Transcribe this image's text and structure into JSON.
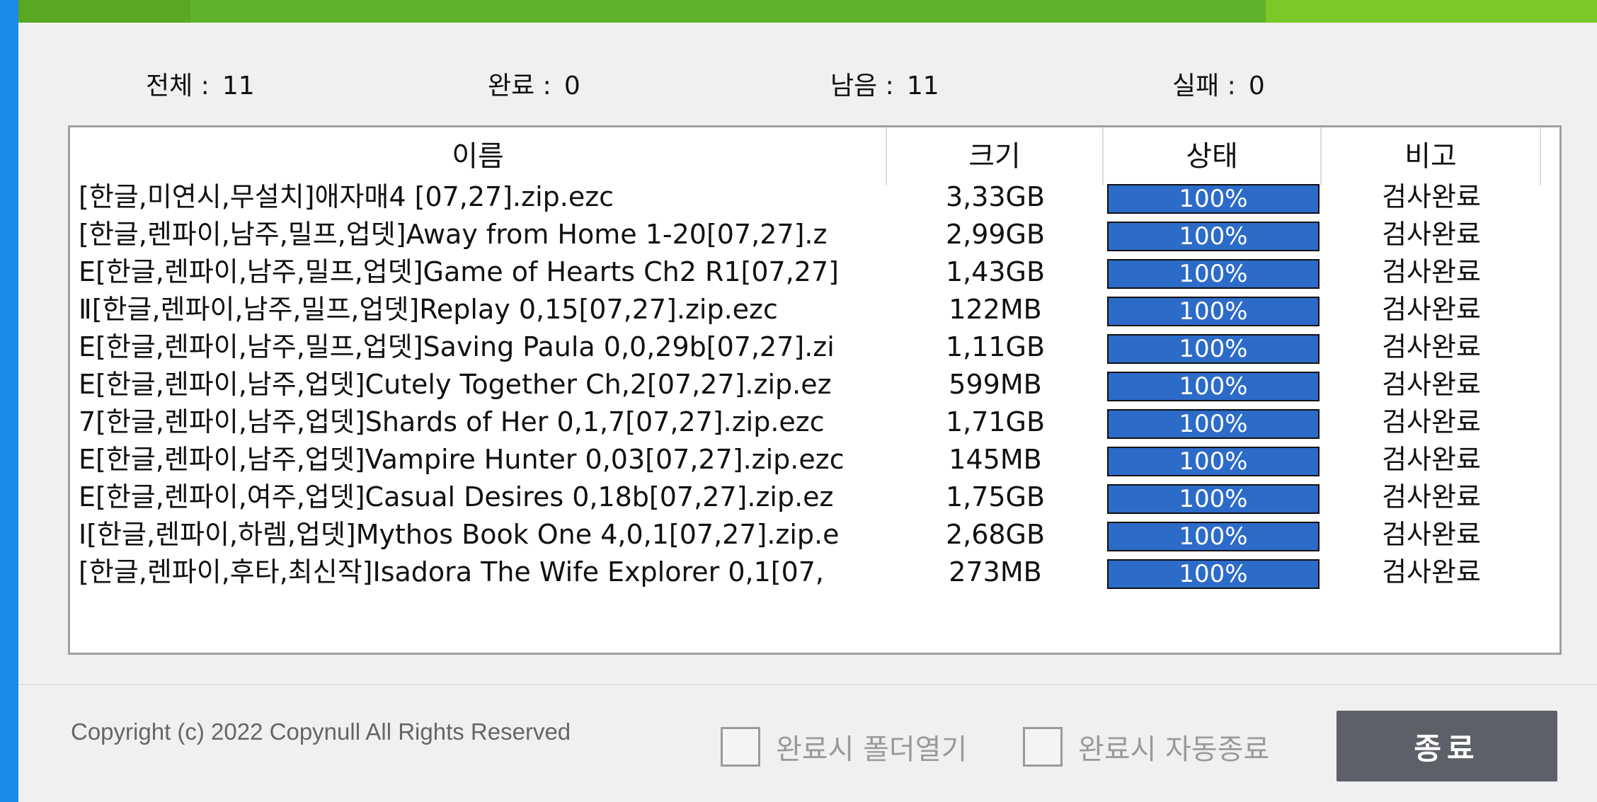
{
  "overall_progress": 0.79,
  "summary": {
    "total_label": "전체 :",
    "total_value": "11",
    "done_label": "완료 :",
    "done_value": "0",
    "remaining_label": "남음 :",
    "remaining_value": "11",
    "failed_label": "실패 :",
    "failed_value": "0"
  },
  "table": {
    "columns": [
      "이름",
      "크기",
      "상태",
      "비고"
    ],
    "rows": [
      {
        "name": "[한글,미연시,무설치]애자매4 [07,27].zip.ezc",
        "size": "3,33GB",
        "progress": 1.0,
        "status": "100%",
        "note": "검사완료"
      },
      {
        "name": "[한글,렌파이,남주,밀프,업뎃]Away from Home 1-20[07,27].z",
        "size": "2,99GB",
        "progress": 1.0,
        "status": "100%",
        "note": "검사완료"
      },
      {
        "name": "E[한글,렌파이,남주,밀프,업뎃]Game of Hearts Ch2 R1[07,27]",
        "size": "1,43GB",
        "progress": 1.0,
        "status": "100%",
        "note": "검사완료"
      },
      {
        "name": "Ⅱ[한글,렌파이,남주,밀프,업뎃]Replay 0,15[07,27].zip.ezc",
        "size": "122MB",
        "progress": 1.0,
        "status": "100%",
        "note": "검사완료"
      },
      {
        "name": "E[한글,렌파이,남주,밀프,업뎃]Saving Paula 0,0,29b[07,27].zi",
        "size": "1,11GB",
        "progress": 1.0,
        "status": "100%",
        "note": "검사완료"
      },
      {
        "name": "E[한글,렌파이,남주,업뎃]Cutely Together Ch,2[07,27].zip.ez",
        "size": "599MB",
        "progress": 1.0,
        "status": "100%",
        "note": "검사완료"
      },
      {
        "name": "7[한글,렌파이,남주,업뎃]Shards of Her 0,1,7[07,27].zip.ezc",
        "size": "1,71GB",
        "progress": 1.0,
        "status": "100%",
        "note": "검사완료"
      },
      {
        "name": "E[한글,렌파이,남주,업뎃]Vampire Hunter 0,03[07,27].zip.ezc",
        "size": "145MB",
        "progress": 1.0,
        "status": "100%",
        "note": "검사완료"
      },
      {
        "name": "E[한글,렌파이,여주,업뎃]Casual Desires 0,18b[07,27].zip.ez",
        "size": "1,75GB",
        "progress": 1.0,
        "status": "100%",
        "note": "검사완료"
      },
      {
        "name": "I[한글,렌파이,하렘,업뎃]Mythos Book One 4,0,1[07,27].zip.e",
        "size": "2,68GB",
        "progress": 1.0,
        "status": "100%",
        "note": "검사완료"
      },
      {
        "name": "[한글,렌파이,후타,최신작]Isadora The Wife Explorer 0,1[07,",
        "size": "273MB",
        "progress": 1.0,
        "status": "100%",
        "note": "검사완료"
      }
    ]
  },
  "footer": {
    "copyright": "Copyright (c) 2022 Copynull All Rights Reserved",
    "open_folder_label": "완료시 폴더열기",
    "open_folder_checked": false,
    "auto_exit_label": "완료시 자동종료",
    "auto_exit_checked": false,
    "exit_button": "종료"
  },
  "colors": {
    "progress_green": "#7bc829",
    "bar_blue": "#2d6bc9",
    "button_gray": "#5e6069"
  }
}
